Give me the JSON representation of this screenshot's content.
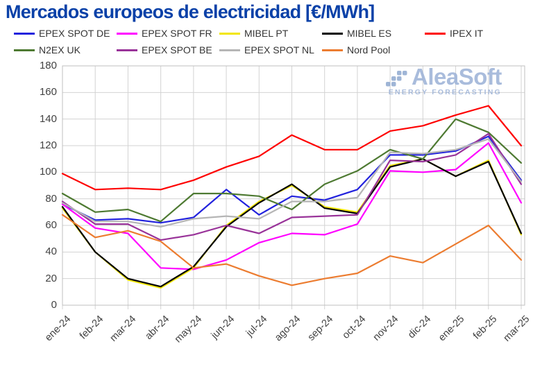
{
  "page": {
    "title": "Mercados europeos de electricidad [€/MWh]"
  },
  "watermark": {
    "brand": "AleaSoft",
    "tagline": "ENERGY FORECASTING"
  },
  "style": {
    "title_color": "#0A41A8",
    "legend_text_color": "#343434",
    "axis_text_color": "#424242",
    "grid_color": "#D3D3D3",
    "plot_border_color": "#BFBFBF",
    "logo_text_color": "#9BB1D6",
    "logo_dots_color": "#8FA9D0"
  },
  "chart_data": {
    "type": "line",
    "title": "Mercados europeos de electricidad [€/MWh]",
    "xlabel": "",
    "ylabel": "€/MWh",
    "ylim": [
      0,
      180
    ],
    "y_ticks": [
      "0",
      "20",
      "40",
      "60",
      "80",
      "100",
      "120",
      "140",
      "160",
      "180"
    ],
    "grid": true,
    "legend_position": "top",
    "categories": [
      "ene-24",
      "feb-24",
      "mar-24",
      "abr-24",
      "may-24",
      "jun-24",
      "jul-24",
      "ago-24",
      "sep-24",
      "oct-24",
      "nov-24",
      "dic-24",
      "ene-25",
      "feb-25",
      "mar-25"
    ],
    "series": [
      {
        "name": "EPEX SPOT DE",
        "color": "#2222DD",
        "values": [
          76,
          64,
          65,
          62,
          66,
          87,
          68,
          82,
          79,
          87,
          113,
          113,
          116,
          127,
          94
        ]
      },
      {
        "name": "EPEX SPOT FR",
        "color": "#FF00FF",
        "values": [
          76,
          58,
          54,
          28,
          27,
          34,
          47,
          54,
          53,
          61,
          101,
          100,
          102,
          122,
          77
        ]
      },
      {
        "name": "MIBEL PT",
        "color": "#F2E600",
        "values": [
          73,
          40,
          19,
          13,
          28,
          60,
          78,
          90,
          74,
          70,
          105,
          110,
          97,
          109,
          53
        ]
      },
      {
        "name": "MIBEL ES",
        "color": "#000000",
        "values": [
          74,
          40,
          20,
          14,
          29,
          59,
          77,
          91,
          73,
          69,
          104,
          110,
          97,
          108,
          54
        ]
      },
      {
        "name": "IPEX IT",
        "color": "#FE0000",
        "values": [
          99,
          87,
          88,
          87,
          94,
          104,
          112,
          128,
          117,
          117,
          131,
          135,
          143,
          150,
          120
        ]
      },
      {
        "name": "N2EX UK",
        "color": "#4E7A32",
        "values": [
          84,
          70,
          72,
          63,
          84,
          84,
          82,
          72,
          91,
          101,
          117,
          110,
          140,
          130,
          107
        ]
      },
      {
        "name": "EPEX SPOT BE",
        "color": "#993399",
        "values": [
          78,
          61,
          61,
          49,
          53,
          60,
          54,
          66,
          67,
          68,
          109,
          108,
          113,
          129,
          91
        ]
      },
      {
        "name": "EPEX SPOT NL",
        "color": "#B5B5B5",
        "values": [
          77,
          63,
          63,
          59,
          65,
          67,
          65,
          78,
          78,
          81,
          115,
          114,
          117,
          125,
          93
        ]
      },
      {
        "name": "Nord Pool",
        "color": "#EC7C30",
        "values": [
          68,
          51,
          56,
          48,
          28,
          31,
          22,
          15,
          20,
          24,
          37,
          32,
          46,
          60,
          34
        ]
      }
    ]
  }
}
